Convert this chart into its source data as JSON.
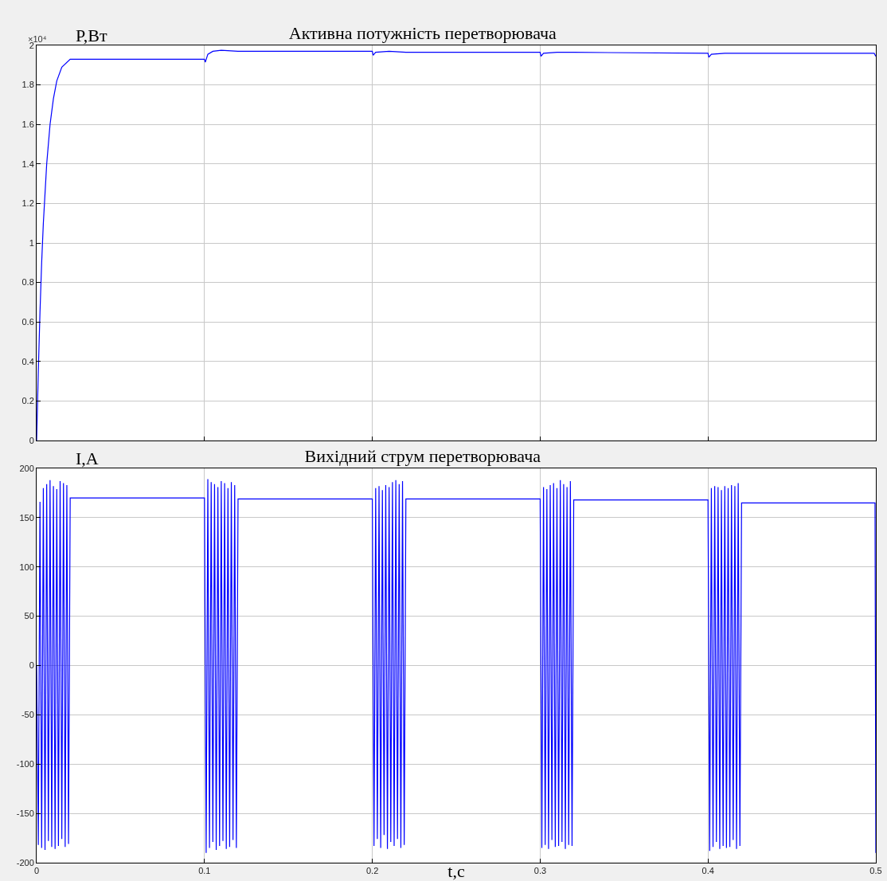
{
  "chart_data": [
    {
      "type": "line",
      "title": "Активна потужність перетворювача",
      "ylabel": "P,Вт",
      "annotations": [
        "×10⁴"
      ],
      "color": "#0000ff",
      "grid": true,
      "tick_labels": "y",
      "xlim": [
        0,
        0.5
      ],
      "xticks": [
        0,
        0.1,
        0.2,
        0.3,
        0.4,
        0.5
      ],
      "ylim": [
        0,
        2
      ],
      "yticks": [
        0,
        0.2,
        0.4,
        0.6,
        0.8,
        1,
        1.2,
        1.4,
        1.6,
        1.8,
        2
      ],
      "x": [
        0,
        0.001,
        0.002,
        0.003,
        0.004,
        0.006,
        0.008,
        0.01,
        0.012,
        0.015,
        0.02,
        0.1,
        0.1005,
        0.102,
        0.105,
        0.11,
        0.12,
        0.2,
        0.2005,
        0.202,
        0.21,
        0.22,
        0.3,
        0.3005,
        0.302,
        0.31,
        0.32,
        0.4,
        0.4005,
        0.402,
        0.41,
        0.42,
        0.499,
        0.5
      ],
      "values": [
        0,
        0.35,
        0.65,
        0.9,
        1.1,
        1.4,
        1.6,
        1.73,
        1.82,
        1.89,
        1.93,
        1.93,
        1.915,
        1.955,
        1.97,
        1.975,
        1.97,
        1.97,
        1.95,
        1.965,
        1.97,
        1.965,
        1.965,
        1.945,
        1.96,
        1.965,
        1.965,
        1.96,
        1.94,
        1.955,
        1.96,
        1.96,
        1.96,
        1.945
      ]
    },
    {
      "type": "line",
      "title": "Вихідний струм перетворювача",
      "ylabel": "I,A",
      "xlabel": "t,c",
      "color": "#0000ff",
      "grid": true,
      "xlim": [
        0,
        0.5
      ],
      "xticks": [
        0,
        0.1,
        0.2,
        0.3,
        0.4,
        0.5
      ],
      "ylim": [
        -200,
        200
      ],
      "yticks": [
        -200,
        -150,
        -100,
        -50,
        0,
        50,
        100,
        150,
        200
      ],
      "x": [
        0,
        0.001,
        0.002,
        0.003,
        0.004,
        0.005,
        0.006,
        0.007,
        0.008,
        0.009,
        0.01,
        0.011,
        0.012,
        0.013,
        0.014,
        0.015,
        0.016,
        0.017,
        0.018,
        0.019,
        0.02,
        0.1,
        0.101,
        0.102,
        0.103,
        0.104,
        0.105,
        0.106,
        0.107,
        0.108,
        0.109,
        0.11,
        0.111,
        0.112,
        0.113,
        0.114,
        0.115,
        0.116,
        0.117,
        0.118,
        0.119,
        0.12,
        0.2,
        0.201,
        0.202,
        0.203,
        0.204,
        0.205,
        0.206,
        0.207,
        0.208,
        0.209,
        0.21,
        0.211,
        0.212,
        0.213,
        0.214,
        0.215,
        0.216,
        0.217,
        0.218,
        0.219,
        0.22,
        0.3,
        0.301,
        0.302,
        0.303,
        0.304,
        0.305,
        0.306,
        0.307,
        0.308,
        0.309,
        0.31,
        0.311,
        0.312,
        0.313,
        0.314,
        0.315,
        0.316,
        0.317,
        0.318,
        0.319,
        0.32,
        0.4,
        0.401,
        0.402,
        0.403,
        0.404,
        0.405,
        0.406,
        0.407,
        0.408,
        0.409,
        0.41,
        0.411,
        0.412,
        0.413,
        0.414,
        0.415,
        0.416,
        0.417,
        0.418,
        0.419,
        0.42,
        0.4995,
        0.5
      ],
      "values": [
        0,
        -182,
        166,
        -185,
        180,
        -187,
        184,
        -178,
        188,
        -184,
        182,
        -186,
        179,
        -183,
        187,
        -176,
        185,
        -184,
        183,
        -181,
        170,
        170,
        -190,
        189,
        -185,
        186,
        -179,
        184,
        -187,
        181,
        -183,
        187,
        -178,
        185,
        -186,
        180,
        -184,
        186,
        -177,
        183,
        -185,
        169,
        169,
        -183,
        180,
        -176,
        182,
        -185,
        178,
        -172,
        183,
        -186,
        181,
        -179,
        186,
        -183,
        188,
        -176,
        184,
        -185,
        187,
        -182,
        169,
        169,
        -185,
        181,
        -182,
        179,
        -186,
        183,
        -177,
        185,
        -184,
        180,
        -183,
        188,
        -179,
        184,
        -186,
        181,
        -182,
        187,
        -183,
        168,
        168,
        -188,
        180,
        -184,
        182,
        -179,
        181,
        -186,
        178,
        -183,
        182,
        -185,
        180,
        -184,
        183,
        -177,
        182,
        -186,
        185,
        -183,
        165,
        165,
        -190
      ]
    }
  ]
}
